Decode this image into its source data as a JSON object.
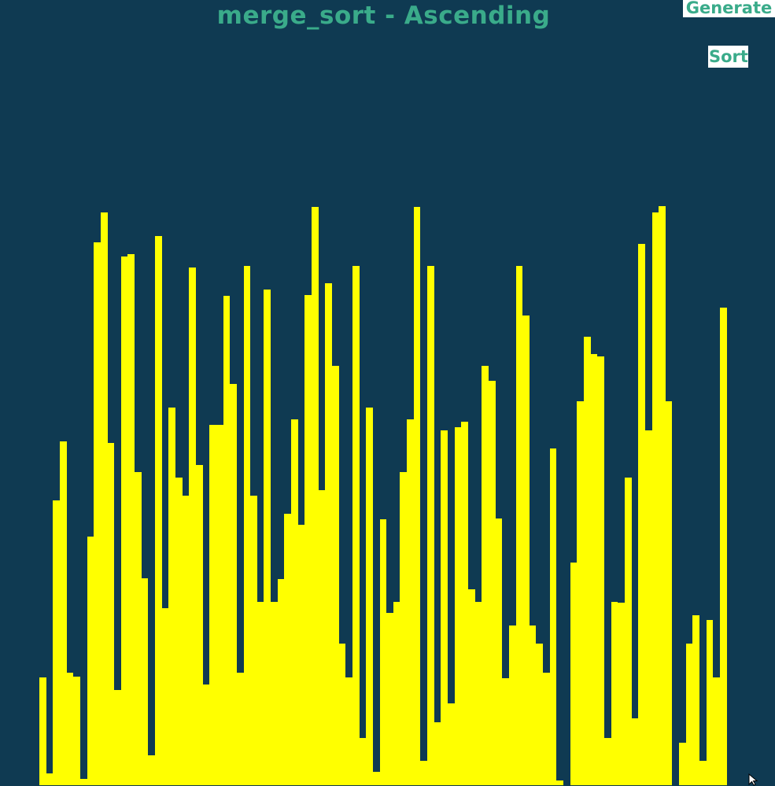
{
  "header": {
    "title": "merge_sort - Ascending"
  },
  "toolbar": {
    "generate_label": "Generate",
    "sort_label": "Sort"
  },
  "colors": {
    "background": "#0f3a52",
    "bar": "#ffff00",
    "accent": "#3aab8a",
    "button_bg": "#ffffff"
  },
  "chart_data": {
    "type": "bar",
    "series": [
      {
        "values": [
          137,
          15,
          362,
          437,
          143,
          138,
          8,
          316,
          690,
          728,
          435,
          121,
          672,
          675,
          398,
          263,
          38,
          698,
          225,
          480,
          391,
          368,
          658,
          407,
          128,
          458,
          458,
          622,
          510,
          143,
          660,
          368,
          233,
          630,
          233,
          262,
          345,
          465,
          331,
          623,
          735,
          375,
          638,
          533,
          180,
          137,
          660,
          60,
          480,
          17,
          338,
          219,
          233,
          398,
          465,
          735,
          31,
          660,
          80,
          451,
          104,
          455,
          462,
          249,
          233,
          533,
          514,
          339,
          136,
          203,
          660,
          597,
          203,
          180,
          143,
          428,
          6,
          0,
          283,
          488,
          570,
          548,
          545,
          60,
          233,
          232,
          391,
          85,
          688,
          451,
          728,
          736,
          488,
          0,
          54,
          180,
          216,
          31,
          210,
          137,
          607
        ]
      }
    ]
  }
}
